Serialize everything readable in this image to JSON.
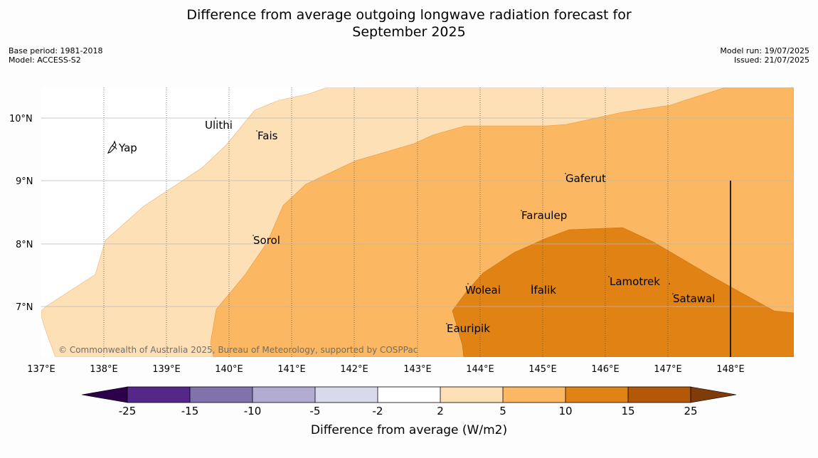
{
  "title_line1": "Difference from average outgoing longwave radiation forecast for",
  "title_line2": "September 2025",
  "base_period": "Base period: 1981-2018",
  "model": "Model: ACCESS-S2",
  "model_run": "Model run: 19/07/2025",
  "issued": "Issued: 21/07/2025",
  "copyright": "© Commonwealth of Australia 2025, Bureau of Meteorology, supported by COSPPac",
  "map": {
    "lon_range": [
      137,
      149
    ],
    "lat_range": [
      6.2,
      10.5
    ],
    "lon_ticks": [
      {
        "value": 137,
        "label": "137°E"
      },
      {
        "value": 138,
        "label": "138°E"
      },
      {
        "value": 139,
        "label": "139°E"
      },
      {
        "value": 140,
        "label": "140°E"
      },
      {
        "value": 141,
        "label": "141°E"
      },
      {
        "value": 142,
        "label": "142°E"
      },
      {
        "value": 143,
        "label": "143°E"
      },
      {
        "value": 144,
        "label": "144°E"
      },
      {
        "value": 145,
        "label": "145°E"
      },
      {
        "value": 146,
        "label": "146°E"
      },
      {
        "value": 147,
        "label": "147°E"
      },
      {
        "value": 148,
        "label": "148°E"
      }
    ],
    "lat_ticks": [
      {
        "value": 10,
        "label": "10°N"
      },
      {
        "value": 9,
        "label": "9°N"
      },
      {
        "value": 8,
        "label": "8°N"
      },
      {
        "value": 7,
        "label": "7°N"
      }
    ],
    "places": [
      {
        "name": "Yap",
        "lon": 138.2,
        "lat": 9.5
      },
      {
        "name": "Ulithi",
        "lon": 139.6,
        "lat": 9.85
      },
      {
        "name": "Fais",
        "lon": 140.4,
        "lat": 9.7
      },
      {
        "name": "Gaferut",
        "lon": 145.3,
        "lat": 9.0
      },
      {
        "name": "Faraulep",
        "lon": 144.6,
        "lat": 8.45
      },
      {
        "name": "Sorol",
        "lon": 140.4,
        "lat": 8.0
      },
      {
        "name": "Lamotrek",
        "lon": 146.0,
        "lat": 7.35
      },
      {
        "name": "Woleai",
        "lon": 143.8,
        "lat": 7.25
      },
      {
        "name": "Ifalik",
        "lon": 144.7,
        "lat": 7.25
      },
      {
        "name": "Satawal",
        "lon": 147.05,
        "lat": 7.1
      },
      {
        "name": "Eauripik",
        "lon": 143.45,
        "lat": 6.62
      }
    ],
    "contours": [
      {
        "range": "2 to 5",
        "color": "#fde0b6"
      },
      {
        "range": "5 to 10",
        "color": "#fbb761"
      },
      {
        "range": "10 to 15",
        "color": "#e08214"
      }
    ]
  },
  "colorbar": {
    "label": "Difference from average (W/m2)",
    "ticks": [
      "-25",
      "-15",
      "-10",
      "-5",
      "-2",
      "2",
      "5",
      "10",
      "15",
      "25"
    ],
    "under_color": "#2d004b",
    "over_color": "#7f3b08",
    "colors": [
      "#542788",
      "#8073ac",
      "#b2abd2",
      "#d8daeb",
      "#ffffff",
      "#fde0b6",
      "#fbb761",
      "#e08214",
      "#b35806"
    ]
  }
}
